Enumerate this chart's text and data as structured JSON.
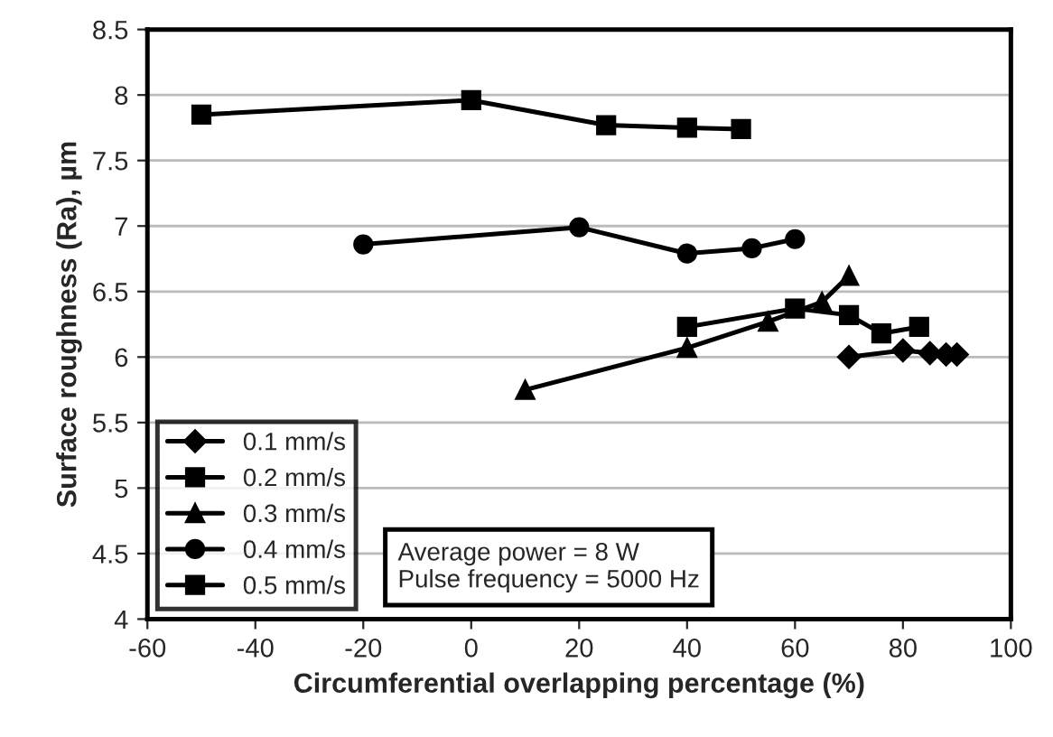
{
  "chart_data": {
    "type": "line",
    "xlabel": "Circumferential overlapping percentage (%)",
    "ylabel": "Surface roughness (Ra), µm",
    "xlim": [
      -60,
      100
    ],
    "xticks": [
      -60,
      -40,
      -20,
      0,
      20,
      40,
      60,
      80,
      100
    ],
    "ylim": [
      4,
      8.5
    ],
    "yticks": [
      4,
      4.5,
      5,
      5.5,
      6,
      6.5,
      7,
      7.5,
      8,
      8.5
    ],
    "grid": "y",
    "legend": "bottom left",
    "line_style": "solid",
    "annotations": [
      "Average power = 8 W\nPulse frequency = 5000 Hz"
    ],
    "series": [
      {
        "name": "0.1 mm/s",
        "color": "#000000",
        "marker": "diamond",
        "x": [
          70,
          80,
          85,
          88,
          90
        ],
        "values": [
          6.0,
          6.05,
          6.03,
          6.02,
          6.02
        ]
      },
      {
        "name": "0.2 mm/s",
        "color": "#000000",
        "marker": "square",
        "x": [
          40,
          60,
          70,
          76,
          83
        ],
        "values": [
          6.23,
          6.37,
          6.32,
          6.18,
          6.23
        ]
      },
      {
        "name": "0.3 mm/s",
        "color": "#000000",
        "marker": "triangle",
        "x": [
          10,
          40,
          55,
          65,
          70
        ],
        "values": [
          5.75,
          6.07,
          6.27,
          6.42,
          6.62
        ]
      },
      {
        "name": "0.4 mm/s",
        "color": "#000000",
        "marker": "circle",
        "x": [
          -20,
          20,
          40,
          52,
          60
        ],
        "values": [
          6.86,
          6.99,
          6.79,
          6.83,
          6.9
        ]
      },
      {
        "name": "0.5 mm/s",
        "color": "#000000",
        "marker": "square",
        "x": [
          -50,
          0,
          25,
          40,
          50
        ],
        "values": [
          7.85,
          7.96,
          7.77,
          7.75,
          7.74
        ]
      }
    ]
  }
}
